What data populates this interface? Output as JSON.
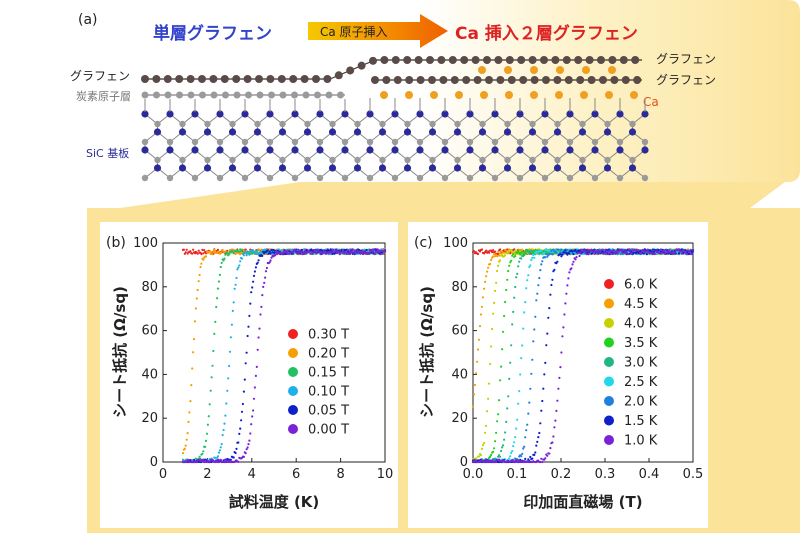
{
  "panel_a": {
    "label": "(a)",
    "left_title": "単層グラフェン",
    "arrow_label": "Ca 原子挿入",
    "right_title": "Ca 挿入２層グラフェン",
    "left_graphene_label": "グラフェン",
    "buffer_label": "炭素原子層",
    "right_graphene_top": "グラフェン",
    "right_graphene_bottom": "グラフェン",
    "ca_label": "Ca",
    "substrate_label": "SiC 基板",
    "colors": {
      "blue_title": "#3344cc",
      "red_title": "#dd2222",
      "ca": "#f0a020",
      "si": "#2a2a9a",
      "carbon": "#9a9a9a",
      "graphene": "#5a4a48"
    }
  },
  "chart_data": [
    {
      "type": "scatter",
      "panel_label": "(b)",
      "xlabel": "試料温度 (K)",
      "ylabel": "シート抵抗 (Ω/sq)",
      "xlim": [
        0,
        10
      ],
      "ylim": [
        0,
        100
      ],
      "xticks": [
        "0",
        "2",
        "4",
        "6",
        "8",
        "10"
      ],
      "yticks": [
        "0",
        "20",
        "40",
        "60",
        "80",
        "100"
      ],
      "legend_position": "center-right",
      "series": [
        {
          "name": "0.30 T",
          "color": "#ee2020",
          "x0": 0.9,
          "tc": 0.0,
          "width": 0.1,
          "base": 96,
          "x_end": 10
        },
        {
          "name": "0.20 T",
          "color": "#f5a000",
          "x0": 0.9,
          "tc": 1.35,
          "width": 0.3,
          "base": 96,
          "x_end": 10
        },
        {
          "name": "0.15 T",
          "color": "#22c060",
          "x0": 0.9,
          "tc": 2.25,
          "width": 0.32,
          "base": 96,
          "x_end": 10
        },
        {
          "name": "0.10 T",
          "color": "#20b0e8",
          "x0": 0.9,
          "tc": 3.0,
          "width": 0.34,
          "base": 96,
          "x_end": 10
        },
        {
          "name": "0.05 T",
          "color": "#1020c8",
          "x0": 0.9,
          "tc": 3.75,
          "width": 0.36,
          "base": 96,
          "x_end": 10
        },
        {
          "name": "0.00 T",
          "color": "#7a22d8",
          "x0": 0.9,
          "tc": 4.25,
          "width": 0.38,
          "base": 96,
          "x_end": 10
        }
      ]
    },
    {
      "type": "scatter",
      "panel_label": "(c)",
      "xlabel": "印加面直磁場 (T)",
      "ylabel": "シート抵抗 (Ω/sq)",
      "xlim": [
        0,
        0.5
      ],
      "ylim": [
        0,
        100
      ],
      "xticks": [
        "0.0",
        "0.1",
        "0.2",
        "0.3",
        "0.4",
        "0.5"
      ],
      "yticks": [
        "0",
        "20",
        "40",
        "60",
        "80",
        "100"
      ],
      "legend_position": "center-right",
      "series": [
        {
          "name": "6.0 K",
          "color": "#ee2020",
          "x0": 0.0,
          "tc": -1,
          "width": 0.01,
          "base": 96,
          "x_end": 0.5
        },
        {
          "name": "4.5 K",
          "color": "#f5a000",
          "x0": 0.0,
          "tc": 0.01,
          "width": 0.022,
          "base": 96,
          "x_end": 0.5
        },
        {
          "name": "4.0 K",
          "color": "#c8d000",
          "x0": 0.0,
          "tc": 0.04,
          "width": 0.015,
          "base": 96,
          "x_end": 0.5
        },
        {
          "name": "3.5 K",
          "color": "#22d020",
          "x0": 0.0,
          "tc": 0.065,
          "width": 0.015,
          "base": 96,
          "x_end": 0.5
        },
        {
          "name": "3.0 K",
          "color": "#20b880",
          "x0": 0.0,
          "tc": 0.085,
          "width": 0.015,
          "base": 96,
          "x_end": 0.5
        },
        {
          "name": "2.5 K",
          "color": "#20d8e8",
          "x0": 0.0,
          "tc": 0.11,
          "width": 0.016,
          "base": 96,
          "x_end": 0.5
        },
        {
          "name": "2.0 K",
          "color": "#2080e0",
          "x0": 0.0,
          "tc": 0.135,
          "width": 0.017,
          "base": 96,
          "x_end": 0.5
        },
        {
          "name": "1.5 K",
          "color": "#1020c8",
          "x0": 0.0,
          "tc": 0.165,
          "width": 0.018,
          "base": 96,
          "x_end": 0.5
        },
        {
          "name": "1.0 K",
          "color": "#7a22d8",
          "x0": 0.0,
          "tc": 0.2,
          "width": 0.02,
          "base": 96,
          "x_end": 0.5
        }
      ]
    }
  ]
}
